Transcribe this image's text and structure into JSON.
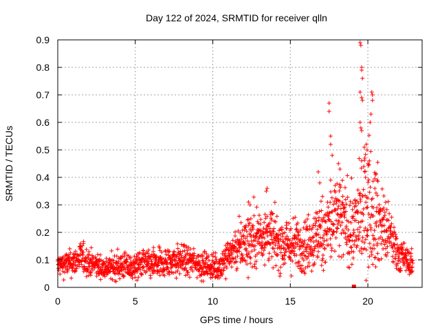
{
  "chart_data": {
    "type": "scatter",
    "title": "Day 122 of 2024, SRMTID for receiver qlln",
    "xlabel": "GPS time / hours",
    "ylabel": "SRMTID / TECUs",
    "xlim": [
      0,
      23.5
    ],
    "ylim": [
      0,
      0.9
    ],
    "x_ticks": [
      0,
      5,
      10,
      15,
      20
    ],
    "x_tick_labels": [
      "0",
      "5",
      "10",
      "15",
      "20"
    ],
    "y_ticks": [
      0,
      0.1,
      0.2,
      0.3,
      0.4,
      0.5,
      0.6,
      0.7,
      0.8,
      0.9
    ],
    "y_tick_labels": [
      "0",
      "0.1",
      "0.2",
      "0.3",
      "0.4",
      "0.5",
      "0.6",
      "0.7",
      "0.8",
      "0.9"
    ],
    "grid": true,
    "marker": "+",
    "marker_color": "#ff0000",
    "series": [
      {
        "name": "SRMTID",
        "envelope_description": "dense scatter, one point per ~30s epoch; values given as median trend",
        "trend_x": [
          0,
          1,
          1.5,
          2,
          3,
          4,
          5,
          5.5,
          6,
          7,
          8,
          9,
          10,
          10.5,
          11,
          11.5,
          12,
          12.5,
          13,
          13.5,
          14,
          15,
          16,
          16.5,
          17,
          17.5,
          18,
          18.5,
          19,
          19.5,
          20,
          20.5,
          21,
          21.5,
          22,
          22.5,
          22.9
        ],
        "trend_y": [
          0.08,
          0.09,
          0.11,
          0.09,
          0.07,
          0.08,
          0.07,
          0.09,
          0.08,
          0.09,
          0.1,
          0.09,
          0.07,
          0.08,
          0.12,
          0.14,
          0.16,
          0.18,
          0.19,
          0.2,
          0.17,
          0.15,
          0.16,
          0.17,
          0.2,
          0.22,
          0.25,
          0.24,
          0.2,
          0.26,
          0.3,
          0.27,
          0.22,
          0.18,
          0.12,
          0.1,
          0.08
        ],
        "spread": [
          0.025,
          0.03,
          0.035,
          0.03,
          0.025,
          0.03,
          0.03,
          0.035,
          0.03,
          0.035,
          0.035,
          0.03,
          0.03,
          0.035,
          0.04,
          0.05,
          0.06,
          0.07,
          0.07,
          0.07,
          0.06,
          0.06,
          0.06,
          0.07,
          0.08,
          0.09,
          0.1,
          0.09,
          0.08,
          0.12,
          0.14,
          0.12,
          0.08,
          0.06,
          0.04,
          0.03,
          0.025
        ],
        "outliers": [
          [
            13.5,
            0.36
          ],
          [
            13.45,
            0.35
          ],
          [
            16.8,
            0.42
          ],
          [
            16.9,
            0.38
          ],
          [
            17.5,
            0.67
          ],
          [
            17.5,
            0.64
          ],
          [
            17.6,
            0.55
          ],
          [
            17.6,
            0.52
          ],
          [
            17.7,
            0.48
          ],
          [
            17.6,
            0.39
          ],
          [
            18.1,
            0.45
          ],
          [
            18.2,
            0.43
          ],
          [
            19.5,
            0.89
          ],
          [
            19.55,
            0.88
          ],
          [
            19.6,
            0.8
          ],
          [
            19.6,
            0.79
          ],
          [
            19.65,
            0.76
          ],
          [
            19.5,
            0.71
          ],
          [
            19.6,
            0.69
          ],
          [
            19.65,
            0.68
          ],
          [
            19.55,
            0.58
          ],
          [
            19.6,
            0.57
          ],
          [
            19.5,
            0.6
          ],
          [
            20.25,
            0.71
          ],
          [
            20.3,
            0.7
          ],
          [
            20.3,
            0.68
          ],
          [
            20.2,
            0.63
          ],
          [
            20.15,
            0.6
          ],
          [
            19.9,
            0.52
          ],
          [
            19.95,
            0.5
          ],
          [
            19.8,
            0.47
          ],
          [
            20.0,
            0.45
          ],
          [
            20.1,
            0.46
          ],
          [
            20.5,
            0.41
          ],
          [
            20.6,
            0.39
          ],
          [
            20.45,
            0.36
          ],
          [
            19.8,
            0.42
          ],
          [
            19.85,
            0.4
          ],
          [
            12.3,
            0.31
          ],
          [
            12.4,
            0.3
          ]
        ],
        "special_point": [
          19.1,
          0.0
        ]
      }
    ]
  }
}
